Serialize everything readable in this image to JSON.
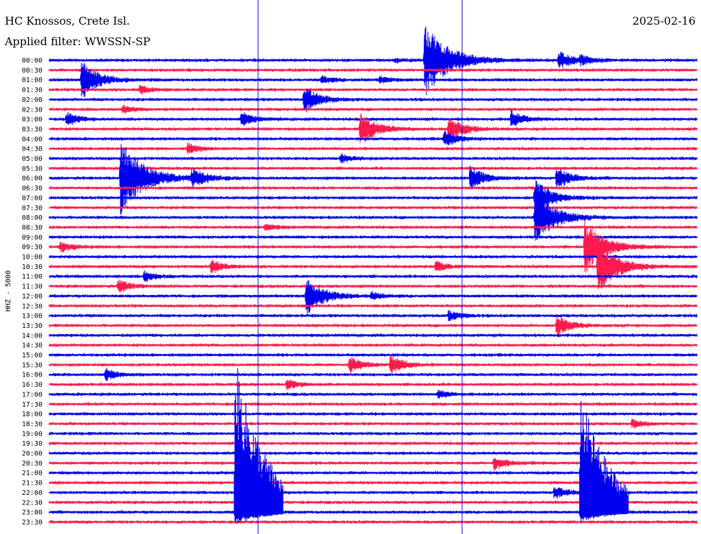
{
  "header": {
    "station": "HC Knossos, Crete Isl.",
    "date": "2025-02-16",
    "filter": "Applied filter: WWSSN-SP"
  },
  "channel_label": "HHZ - 5000",
  "colors": {
    "even_rows": "#0000ee",
    "odd_rows": "#ff1a4d",
    "text": "#000000",
    "background": "#ffffff"
  },
  "chart_data": {
    "type": "helicorder",
    "title": "HC Knossos, Crete Isl.",
    "date": "2025-02-16",
    "filter": "WWSSN-SP",
    "channel": "HHZ - 5000",
    "row_minutes": 30,
    "y_tick_labels": [
      "00:00",
      "00:30",
      "01:00",
      "01:30",
      "02:00",
      "02:30",
      "03:00",
      "03:30",
      "04:00",
      "04:30",
      "05:00",
      "05:30",
      "06:00",
      "06:30",
      "07:00",
      "07:30",
      "08:00",
      "08:30",
      "09:00",
      "09:30",
      "10:00",
      "10:30",
      "11:00",
      "11:30",
      "12:00",
      "12:30",
      "13:00",
      "13:30",
      "14:00",
      "14:30",
      "15:00",
      "15:30",
      "16:00",
      "16:30",
      "17:00",
      "17:30",
      "18:00",
      "18:30",
      "19:00",
      "19:30",
      "20:00",
      "20:30",
      "21:00",
      "21:30",
      "22:00",
      "22:30",
      "23:00",
      "23:30"
    ],
    "row_colors": [
      "blue",
      "red"
    ],
    "events": [
      {
        "row": 0,
        "minute": 16,
        "amp": 3
      },
      {
        "row": 0,
        "minute": 17.4,
        "amp": 55
      },
      {
        "row": 0,
        "minute": 23.6,
        "amp": 14
      },
      {
        "row": 0,
        "minute": 24.6,
        "amp": 6
      },
      {
        "row": 2,
        "minute": 1.5,
        "amp": 28
      },
      {
        "row": 2,
        "minute": 12.6,
        "amp": 6
      },
      {
        "row": 2,
        "minute": 15.3,
        "amp": 6
      },
      {
        "row": 3,
        "minute": 4.2,
        "amp": 6
      },
      {
        "row": 4,
        "minute": 11.8,
        "amp": 20
      },
      {
        "row": 5,
        "minute": 3.4,
        "amp": 6
      },
      {
        "row": 6,
        "minute": 0.8,
        "amp": 10
      },
      {
        "row": 6,
        "minute": 8.9,
        "amp": 10
      },
      {
        "row": 6,
        "minute": 21.4,
        "amp": 12
      },
      {
        "row": 7,
        "minute": 14.4,
        "amp": 25
      },
      {
        "row": 7,
        "minute": 18.5,
        "amp": 20
      },
      {
        "row": 8,
        "minute": 18.3,
        "amp": 12
      },
      {
        "row": 9,
        "minute": 6.4,
        "amp": 8
      },
      {
        "row": 10,
        "minute": 13.5,
        "amp": 6
      },
      {
        "row": 12,
        "minute": 3.3,
        "amp": 55
      },
      {
        "row": 12,
        "minute": 6.6,
        "amp": 14
      },
      {
        "row": 12,
        "minute": 19.5,
        "amp": 18
      },
      {
        "row": 12,
        "minute": 23.5,
        "amp": 16
      },
      {
        "row": 14,
        "minute": 22.5,
        "amp": 28
      },
      {
        "row": 16,
        "minute": 22.5,
        "amp": 40
      },
      {
        "row": 17,
        "minute": 10,
        "amp": 5
      },
      {
        "row": 19,
        "minute": 0.5,
        "amp": 8
      },
      {
        "row": 19,
        "minute": 24.8,
        "amp": 40
      },
      {
        "row": 21,
        "minute": 7.5,
        "amp": 10
      },
      {
        "row": 21,
        "minute": 17.9,
        "amp": 8
      },
      {
        "row": 21,
        "minute": 25.4,
        "amp": 40
      },
      {
        "row": 22,
        "minute": 4.4,
        "amp": 8
      },
      {
        "row": 23,
        "minute": 3.2,
        "amp": 10
      },
      {
        "row": 24,
        "minute": 11.9,
        "amp": 30
      },
      {
        "row": 24,
        "minute": 14.9,
        "amp": 6
      },
      {
        "row": 26,
        "minute": 18.5,
        "amp": 8
      },
      {
        "row": 27,
        "minute": 23.5,
        "amp": 16
      },
      {
        "row": 31,
        "minute": 13.9,
        "amp": 12
      },
      {
        "row": 31,
        "minute": 15.8,
        "amp": 14
      },
      {
        "row": 32,
        "minute": 2.6,
        "amp": 8
      },
      {
        "row": 33,
        "minute": 11,
        "amp": 8
      },
      {
        "row": 34,
        "minute": 18,
        "amp": 6
      },
      {
        "row": 37,
        "minute": 27,
        "amp": 6
      },
      {
        "row": 41,
        "minute": 20.6,
        "amp": 10
      },
      {
        "row": 44,
        "minute": 23.4,
        "amp": 10
      },
      {
        "row": 46,
        "minute": 8.6,
        "amp": 230
      },
      {
        "row": 46,
        "minute": 24.6,
        "amp": 180
      }
    ]
  }
}
